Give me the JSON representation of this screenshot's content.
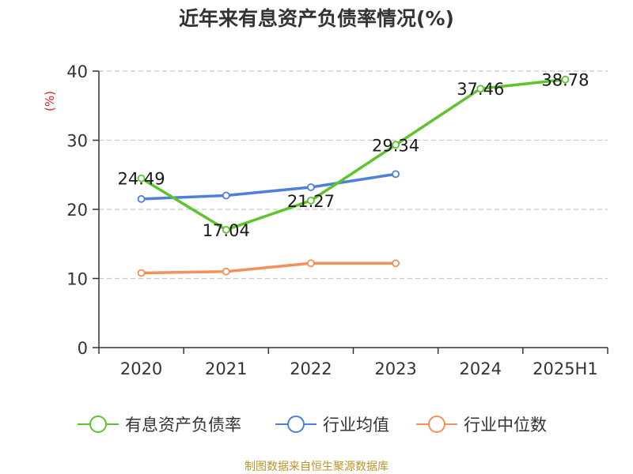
{
  "chart_data": {
    "type": "line",
    "title": "近年来有息资产负债率情况(%)",
    "ylabel": "(%)",
    "categories": [
      "2020",
      "2021",
      "2022",
      "2023",
      "2024",
      "2025H1"
    ],
    "yticks": [
      "0",
      "10",
      "20",
      "30",
      "40"
    ],
    "ylim": [
      0,
      40
    ],
    "grid": true,
    "legend_position": "bottom",
    "series": [
      {
        "name": "有息资产负债率",
        "color": "#5ec42d",
        "values": [
          24.49,
          17.04,
          21.27,
          29.34,
          37.46,
          38.78
        ],
        "labels": [
          "24.49",
          "17.04",
          "21.27",
          "29.34",
          "37.46",
          "38.78"
        ]
      },
      {
        "name": "行业均值",
        "color": "#4e7fd9",
        "values": [
          21.5,
          22.0,
          23.2,
          25.1,
          null,
          null
        ]
      },
      {
        "name": "行业中位数",
        "color": "#f5905a",
        "values": [
          10.8,
          11.0,
          12.2,
          12.2,
          null,
          null
        ]
      }
    ]
  },
  "footer": {
    "source": "制图数据来自恒生聚源数据库"
  }
}
